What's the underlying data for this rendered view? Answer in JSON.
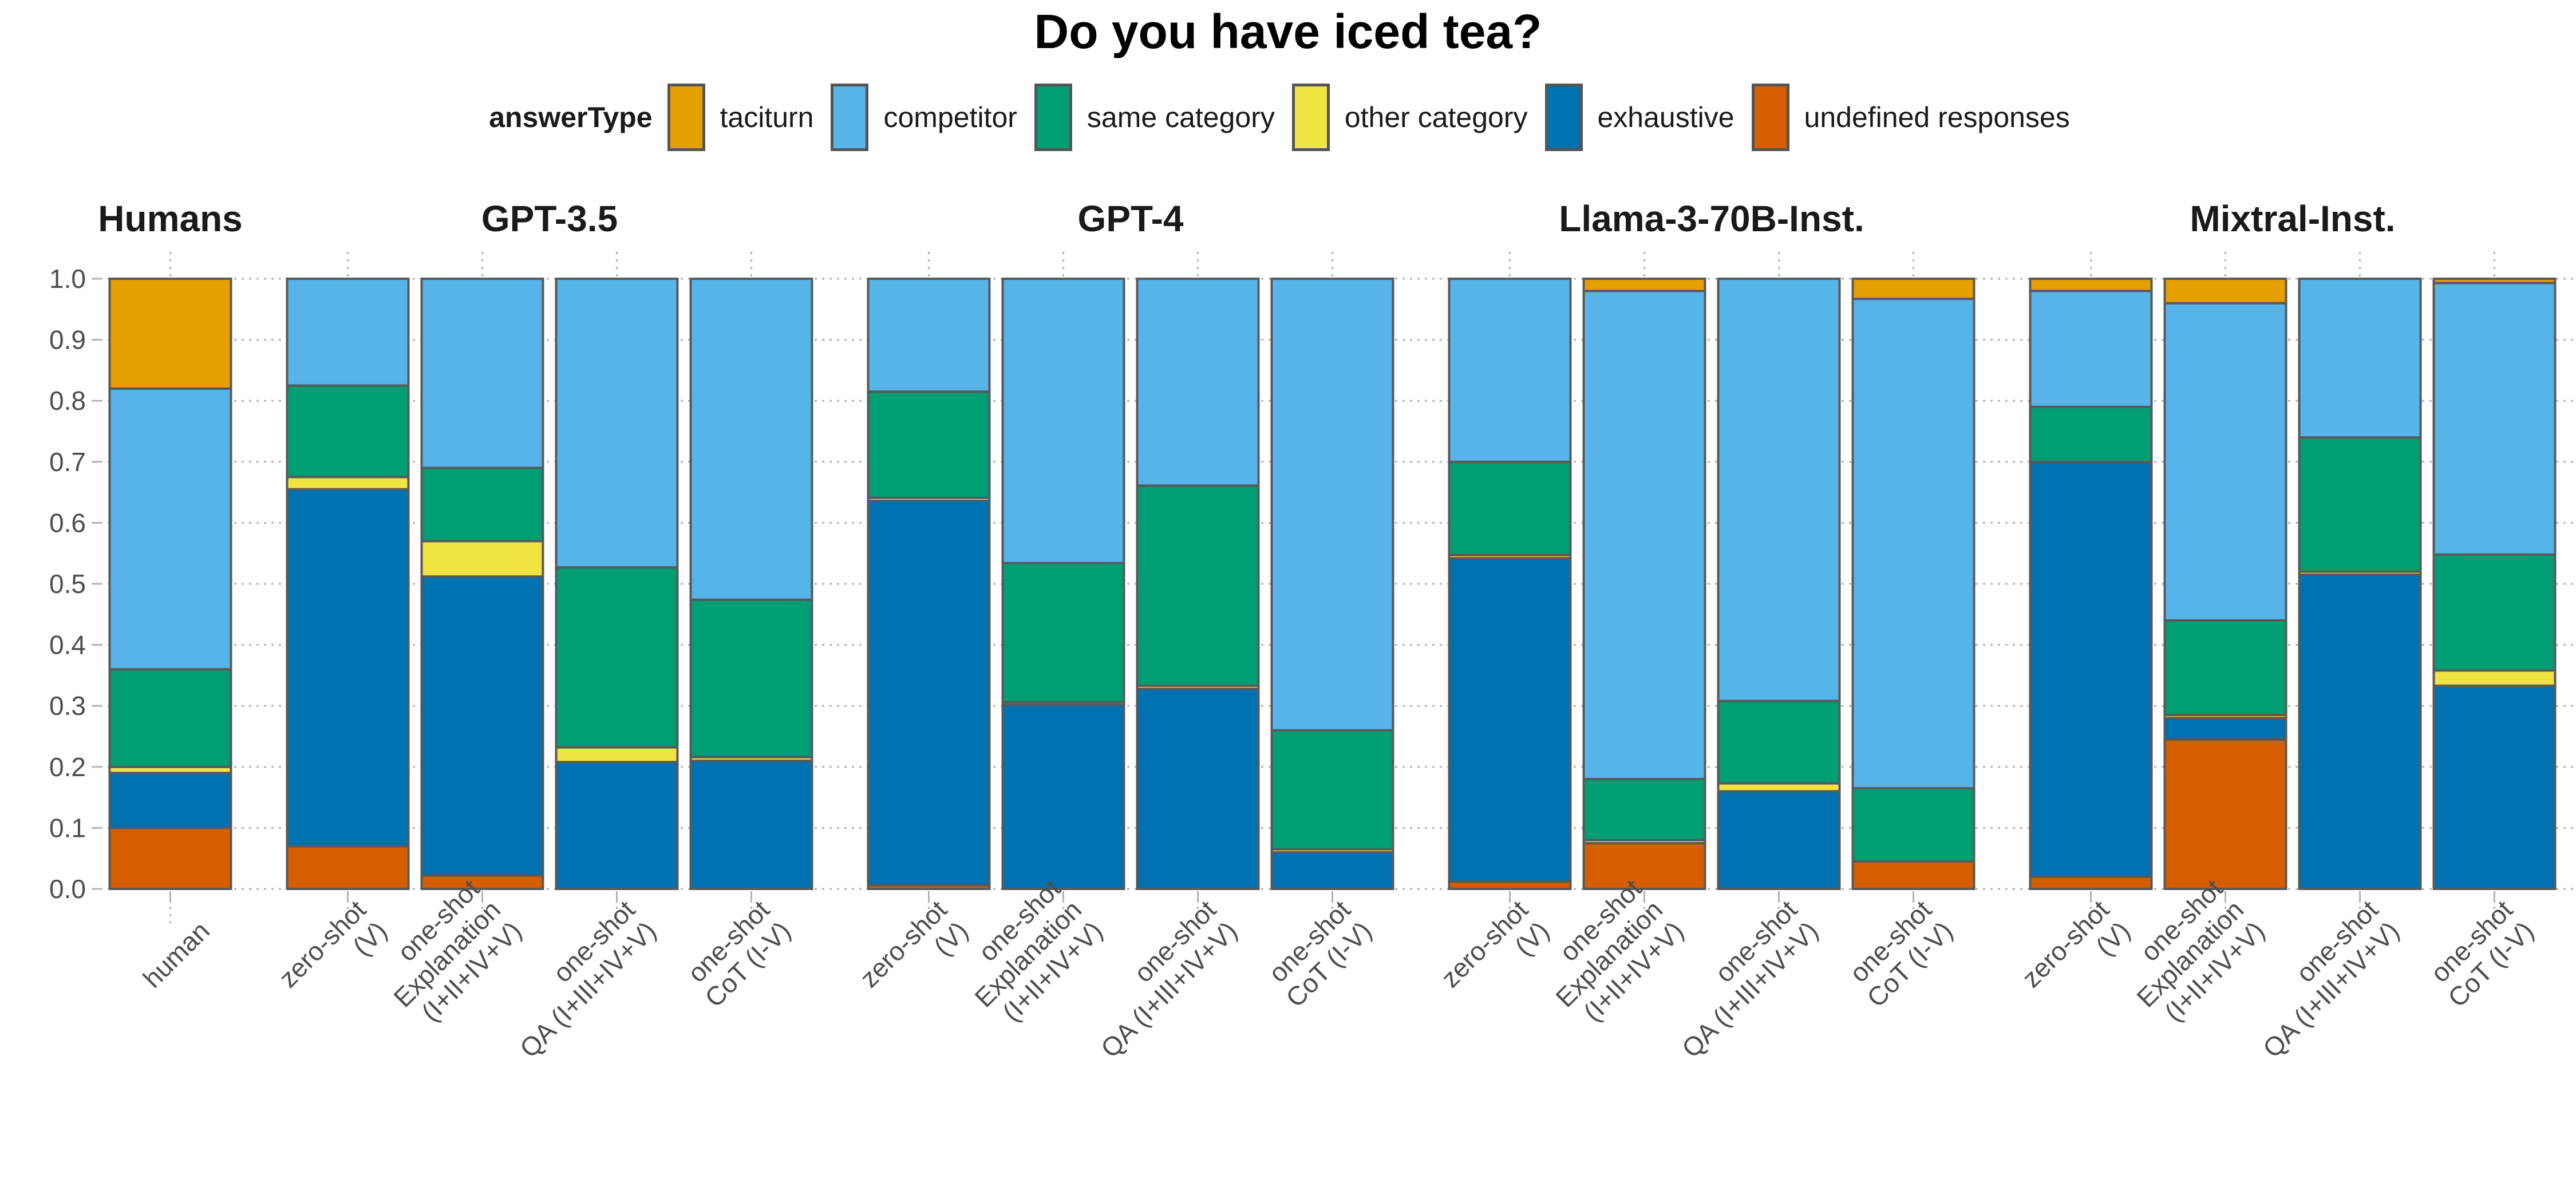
{
  "chart_data": {
    "type": "bar",
    "stacked": true,
    "title": "Do you have iced tea?",
    "legend": {
      "title": "answerType",
      "placement": "top",
      "items": [
        {
          "label": "taciturn",
          "color": "#E69F00"
        },
        {
          "label": "competitor",
          "color": "#56B4E9"
        },
        {
          "label": "same category",
          "color": "#009E73"
        },
        {
          "label": "other category",
          "color": "#F0E442"
        },
        {
          "label": "exhaustive",
          "color": "#0072B2"
        },
        {
          "label": "undefined responses",
          "color": "#D55E00"
        }
      ]
    },
    "stack_order_bottom_to_top": [
      "undefined responses",
      "exhaustive",
      "other category",
      "same category",
      "competitor",
      "taciturn"
    ],
    "ylim": [
      0,
      1
    ],
    "yticks": [
      "0.0",
      "0.1",
      "0.2",
      "0.3",
      "0.4",
      "0.5",
      "0.6",
      "0.7",
      "0.8",
      "0.9",
      "1.0"
    ],
    "grid": true,
    "facets": [
      {
        "name": "Humans",
        "bars": [
          {
            "label": [
              "human"
            ],
            "values": {
              "undefined responses": 0.1,
              "exhaustive": 0.09,
              "other category": 0.01,
              "same category": 0.16,
              "competitor": 0.46,
              "taciturn": 0.18
            }
          }
        ]
      },
      {
        "name": "GPT-3.5",
        "bars": [
          {
            "label": [
              "zero-shot",
              "(V)"
            ],
            "values": {
              "undefined responses": 0.07,
              "exhaustive": 0.585,
              "other category": 0.02,
              "same category": 0.15,
              "competitor": 0.175,
              "taciturn": 0.0
            }
          },
          {
            "label": [
              "one-shot",
              "Explanation",
              "(I+II+IV+V)"
            ],
            "values": {
              "undefined responses": 0.022,
              "exhaustive": 0.49,
              "other category": 0.058,
              "same category": 0.12,
              "competitor": 0.31,
              "taciturn": 0.0
            }
          },
          {
            "label": [
              "one-shot",
              "QA (I+III+IV+V)"
            ],
            "values": {
              "undefined responses": 0.0,
              "exhaustive": 0.208,
              "other category": 0.024,
              "same category": 0.295,
              "competitor": 0.473,
              "taciturn": 0.0
            }
          },
          {
            "label": [
              "one-shot",
              "CoT (I-V)"
            ],
            "values": {
              "undefined responses": 0.0,
              "exhaustive": 0.21,
              "other category": 0.006,
              "same category": 0.258,
              "competitor": 0.526,
              "taciturn": 0.0
            }
          }
        ]
      },
      {
        "name": "GPT-4",
        "bars": [
          {
            "label": [
              "zero-shot",
              "(V)"
            ],
            "values": {
              "undefined responses": 0.006,
              "exhaustive": 0.63,
              "other category": 0.005,
              "same category": 0.174,
              "competitor": 0.185,
              "taciturn": 0.0
            }
          },
          {
            "label": [
              "one-shot",
              "Explanation",
              "(I+II+IV+V)"
            ],
            "values": {
              "undefined responses": 0.0,
              "exhaustive": 0.302,
              "other category": 0.004,
              "same category": 0.228,
              "competitor": 0.466,
              "taciturn": 0.0
            }
          },
          {
            "label": [
              "one-shot",
              "QA (I+III+IV+V)"
            ],
            "values": {
              "undefined responses": 0.0,
              "exhaustive": 0.328,
              "other category": 0.005,
              "same category": 0.328,
              "competitor": 0.339,
              "taciturn": 0.0
            }
          },
          {
            "label": [
              "one-shot",
              "CoT (I-V)"
            ],
            "values": {
              "undefined responses": 0.0,
              "exhaustive": 0.06,
              "other category": 0.005,
              "same category": 0.195,
              "competitor": 0.74,
              "taciturn": 0.0
            }
          }
        ]
      },
      {
        "name": "Llama-3-70B-Inst.",
        "bars": [
          {
            "label": [
              "zero-shot",
              "(V)"
            ],
            "values": {
              "undefined responses": 0.012,
              "exhaustive": 0.53,
              "other category": 0.005,
              "same category": 0.153,
              "competitor": 0.3,
              "taciturn": 0.0
            }
          },
          {
            "label": [
              "one-shot",
              "Explanation",
              "(I+II+IV+V)"
            ],
            "values": {
              "undefined responses": 0.075,
              "exhaustive": 0.0,
              "other category": 0.005,
              "same category": 0.1,
              "competitor": 0.8,
              "taciturn": 0.02
            }
          },
          {
            "label": [
              "one-shot",
              "QA (I+III+IV+V)"
            ],
            "values": {
              "undefined responses": 0.0,
              "exhaustive": 0.16,
              "other category": 0.013,
              "same category": 0.135,
              "competitor": 0.692,
              "taciturn": 0.0
            }
          },
          {
            "label": [
              "one-shot",
              "CoT (I-V)"
            ],
            "values": {
              "undefined responses": 0.045,
              "exhaustive": 0.0,
              "other category": 0.0,
              "same category": 0.12,
              "competitor": 0.802,
              "taciturn": 0.033
            }
          }
        ]
      },
      {
        "name": "Mixtral-Inst.",
        "bars": [
          {
            "label": [
              "zero-shot",
              "(V)"
            ],
            "values": {
              "undefined responses": 0.02,
              "exhaustive": 0.68,
              "other category": 0.0,
              "same category": 0.09,
              "competitor": 0.19,
              "taciturn": 0.02
            }
          },
          {
            "label": [
              "one-shot",
              "Explanation",
              "(I+II+IV+V)"
            ],
            "values": {
              "undefined responses": 0.245,
              "exhaustive": 0.035,
              "other category": 0.005,
              "same category": 0.155,
              "competitor": 0.52,
              "taciturn": 0.04
            }
          },
          {
            "label": [
              "one-shot",
              "QA (I+III+IV+V)"
            ],
            "values": {
              "undefined responses": 0.0,
              "exhaustive": 0.515,
              "other category": 0.005,
              "same category": 0.22,
              "competitor": 0.26,
              "taciturn": 0.0
            }
          },
          {
            "label": [
              "one-shot",
              "CoT (I-V)"
            ],
            "values": {
              "undefined responses": 0.0,
              "exhaustive": 0.333,
              "other category": 0.025,
              "same category": 0.19,
              "competitor": 0.445,
              "taciturn": 0.007
            }
          }
        ]
      }
    ]
  }
}
